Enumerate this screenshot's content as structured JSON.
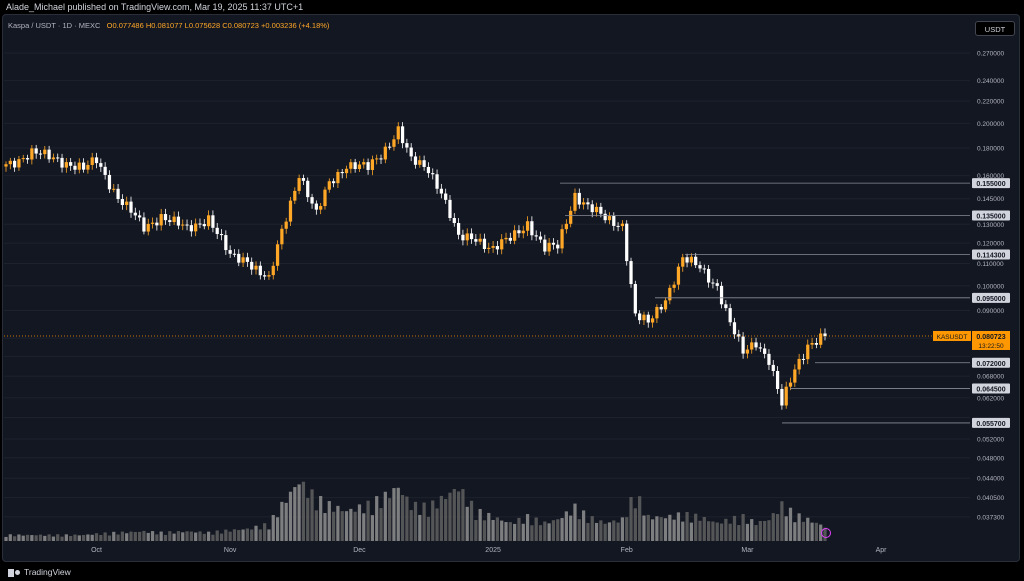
{
  "header": {
    "published": "Alade_Michael published on TradingView.com, Mar 19, 2025 11:37 UTC+1"
  },
  "legend": {
    "symbol": "Kaspa / USDT · 1D · MEXC",
    "open": "O0.077486",
    "high": "H0.081077",
    "low": "L0.075628",
    "close": "C0.080723",
    "change": "+0.003236 (+4.18%)"
  },
  "currency_button": "USDT",
  "footer": {
    "brand": "TradingView"
  },
  "colors": {
    "background": "#131722",
    "up": "#ffa726",
    "down": "#ffffff",
    "level_line": "#8a8d96",
    "price_tag": "#ff9800"
  },
  "chart_data": {
    "type": "candlestick",
    "axis_scale": "log",
    "ylim": [
      0.0355,
      0.28
    ],
    "y_ticks": [
      "0.270000",
      "0.240000",
      "0.220000",
      "0.200000",
      "0.180000",
      "0.160000",
      "0.145000",
      "0.130000",
      "0.120000",
      "0.110000",
      "0.100000",
      "0.090000",
      "0.080000",
      "0.074000",
      "0.068000",
      "0.062000",
      "0.057000",
      "0.052000",
      "0.048000",
      "0.044000",
      "0.040500",
      "0.037300"
    ],
    "x_ticks": [
      "Oct",
      "Nov",
      "Dec",
      "2025",
      "Feb",
      "Mar",
      "Apr"
    ],
    "levels": [
      "0.155000",
      "0.135000",
      "0.114300",
      "0.095000",
      "0.072000",
      "0.064500",
      "0.055700"
    ],
    "last_price": {
      "symbol": "KASUSDT",
      "price": "0.080723",
      "countdown": "13:22:50",
      "value": 0.080723
    },
    "anchors": [
      {
        "date": "Sep 10",
        "close": 0.168,
        "vol": 0.05
      },
      {
        "date": "Sep 16",
        "close": 0.176,
        "vol": 0.05
      },
      {
        "date": "Sep 22",
        "close": 0.172,
        "vol": 0.05
      },
      {
        "date": "Sep 28",
        "close": 0.164,
        "vol": 0.05
      },
      {
        "date": "Oct 1",
        "close": 0.171,
        "vol": 0.06
      },
      {
        "date": "Oct 6",
        "close": 0.146,
        "vol": 0.07
      },
      {
        "date": "Oct 12",
        "close": 0.128,
        "vol": 0.08
      },
      {
        "date": "Oct 16",
        "close": 0.135,
        "vol": 0.07
      },
      {
        "date": "Oct 22",
        "close": 0.127,
        "vol": 0.08
      },
      {
        "date": "Oct 27",
        "close": 0.134,
        "vol": 0.07
      },
      {
        "date": "Nov 1",
        "close": 0.113,
        "vol": 0.09
      },
      {
        "date": "Nov 5",
        "close": 0.112,
        "vol": 0.1
      },
      {
        "date": "Nov 10",
        "close": 0.102,
        "vol": 0.14
      },
      {
        "date": "Nov 13",
        "close": 0.126,
        "vol": 0.3
      },
      {
        "date": "Nov 17",
        "close": 0.162,
        "vol": 0.5
      },
      {
        "date": "Nov 21",
        "close": 0.135,
        "vol": 0.35
      },
      {
        "date": "Nov 24",
        "close": 0.155,
        "vol": 0.3
      },
      {
        "date": "Nov 28",
        "close": 0.168,
        "vol": 0.25
      },
      {
        "date": "Dec 3",
        "close": 0.165,
        "vol": 0.3
      },
      {
        "date": "Dec 6",
        "close": 0.175,
        "vol": 0.35
      },
      {
        "date": "Dec 10",
        "close": 0.195,
        "vol": 0.45
      },
      {
        "date": "Dec 13",
        "close": 0.17,
        "vol": 0.3
      },
      {
        "date": "Dec 17",
        "close": 0.165,
        "vol": 0.28
      },
      {
        "date": "Dec 20",
        "close": 0.15,
        "vol": 0.35
      },
      {
        "date": "Dec 24",
        "close": 0.122,
        "vol": 0.45
      },
      {
        "date": "Dec 28",
        "close": 0.123,
        "vol": 0.25
      },
      {
        "date": "Jan 1",
        "close": 0.117,
        "vol": 0.2
      },
      {
        "date": "Jan 5",
        "close": 0.122,
        "vol": 0.15
      },
      {
        "date": "Jan 9",
        "close": 0.131,
        "vol": 0.2
      },
      {
        "date": "Jan 13",
        "close": 0.117,
        "vol": 0.15
      },
      {
        "date": "Jan 16",
        "close": 0.118,
        "vol": 0.18
      },
      {
        "date": "Jan 20",
        "close": 0.148,
        "vol": 0.28
      },
      {
        "date": "Jan 23",
        "close": 0.14,
        "vol": 0.2
      },
      {
        "date": "Jan 27",
        "close": 0.133,
        "vol": 0.15
      },
      {
        "date": "Jan 31",
        "close": 0.13,
        "vol": 0.18
      },
      {
        "date": "Feb 3",
        "close": 0.088,
        "vol": 0.4
      },
      {
        "date": "Feb 6",
        "close": 0.085,
        "vol": 0.2
      },
      {
        "date": "Feb 10",
        "close": 0.095,
        "vol": 0.2
      },
      {
        "date": "Feb 14",
        "close": 0.112,
        "vol": 0.22
      },
      {
        "date": "Feb 18",
        "close": 0.108,
        "vol": 0.2
      },
      {
        "date": "Feb 22",
        "close": 0.1,
        "vol": 0.15
      },
      {
        "date": "Feb 25",
        "close": 0.085,
        "vol": 0.18
      },
      {
        "date": "Feb 28",
        "close": 0.075,
        "vol": 0.2
      },
      {
        "date": "Mar 3",
        "close": 0.079,
        "vol": 0.15
      },
      {
        "date": "Mar 6",
        "close": 0.073,
        "vol": 0.18
      },
      {
        "date": "Mar 9",
        "close": 0.06,
        "vol": 0.3
      },
      {
        "date": "Mar 12",
        "close": 0.07,
        "vol": 0.22
      },
      {
        "date": "Mar 15",
        "close": 0.078,
        "vol": 0.18
      },
      {
        "date": "Mar 19",
        "close": 0.0807,
        "vol": 0.12
      }
    ]
  }
}
